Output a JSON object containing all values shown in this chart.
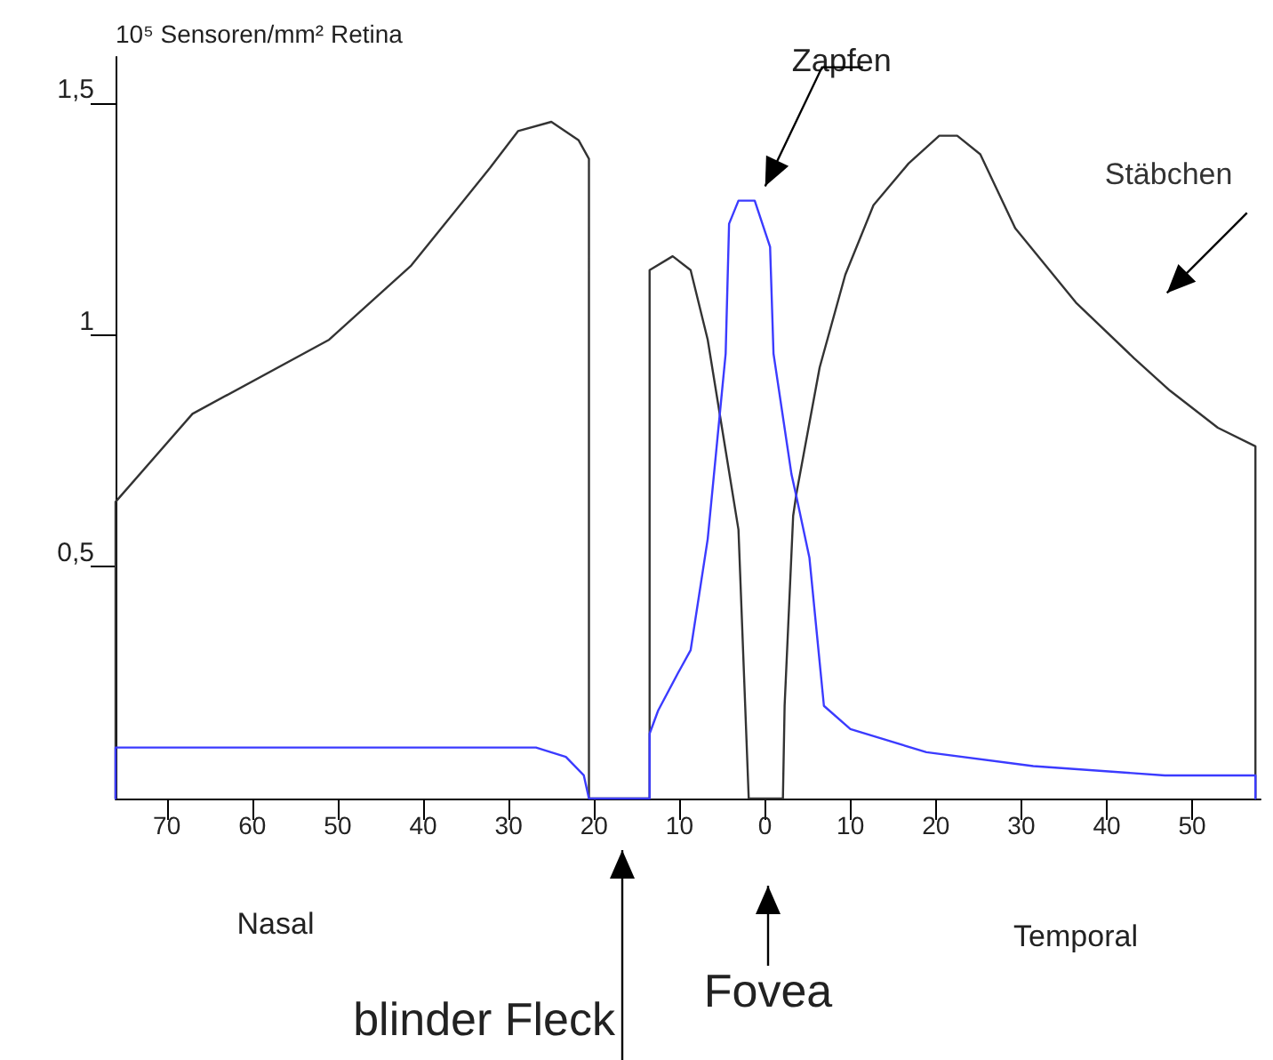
{
  "chart_data": {
    "type": "line",
    "ylabel": "10⁵ Sensoren/mm² Retina",
    "xlim": [
      -76,
      58
    ],
    "ylim": [
      0,
      1.6
    ],
    "xticks": [
      {
        "value": -70,
        "label": "70"
      },
      {
        "value": -60,
        "label": "60"
      },
      {
        "value": -50,
        "label": "50"
      },
      {
        "value": -40,
        "label": "40"
      },
      {
        "value": -30,
        "label": "30"
      },
      {
        "value": -20,
        "label": "20"
      },
      {
        "value": -10,
        "label": "10"
      },
      0,
      10,
      20,
      30,
      40,
      50
    ],
    "yticks": [
      {
        "value": 0.5,
        "label": "0,5"
      },
      1,
      {
        "value": 1.5,
        "label": "1,5"
      }
    ],
    "grid": false,
    "legend": false,
    "marker": "none",
    "line_style": "solid",
    "series": [
      {
        "name": "Stäbchen",
        "color": "#333333",
        "x": [
          -76,
          -76,
          -67,
          -51,
          -41.4,
          -32.2,
          -28.9,
          -25,
          -21.8,
          -20.6,
          -20.6,
          -13.5,
          -13.5,
          -10.8,
          -8.7,
          -6.7,
          -3.1,
          -1.9,
          2.1,
          2.3,
          3.3,
          3.7,
          6.4,
          9.4,
          12.7,
          16.8,
          20.4,
          22.5,
          25.2,
          29.3,
          36.4,
          43.2,
          47.4,
          53,
          57.4,
          57.4
        ],
        "values": [
          0,
          0.64,
          0.83,
          0.99,
          1.15,
          1.36,
          1.44,
          1.46,
          1.42,
          1.38,
          0,
          0,
          1.14,
          1.17,
          1.14,
          0.99,
          0.58,
          0,
          0,
          0.2,
          0.61,
          0.66,
          0.93,
          1.13,
          1.28,
          1.37,
          1.43,
          1.43,
          1.39,
          1.23,
          1.07,
          0.95,
          0.88,
          0.8,
          0.76,
          0
        ]
      },
      {
        "name": "Zapfen",
        "color": "#3b3bff",
        "x": [
          -76,
          -76,
          -26.8,
          -23.3,
          -21.2,
          -20.6,
          -13.5,
          -13.5,
          -13.5,
          -12.5,
          -10.2,
          -8.7,
          -6.7,
          -4.6,
          -4.2,
          -3.1,
          -1.2,
          0.6,
          1,
          3.1,
          3.7,
          5.2,
          6.9,
          10,
          18.9,
          31.4,
          46.8,
          57.4,
          57.4
        ],
        "values": [
          0,
          0.11,
          0.11,
          0.09,
          0.05,
          0,
          0,
          0.05,
          0.14,
          0.19,
          0.27,
          0.32,
          0.56,
          0.96,
          1.24,
          1.29,
          1.29,
          1.19,
          0.96,
          0.7,
          0.65,
          0.52,
          0.2,
          0.15,
          0.1,
          0.07,
          0.05,
          0.05,
          0
        ]
      }
    ],
    "annotations": [
      "Nasal",
      "Temporal",
      "blinder Fleck",
      "Fovea"
    ]
  }
}
